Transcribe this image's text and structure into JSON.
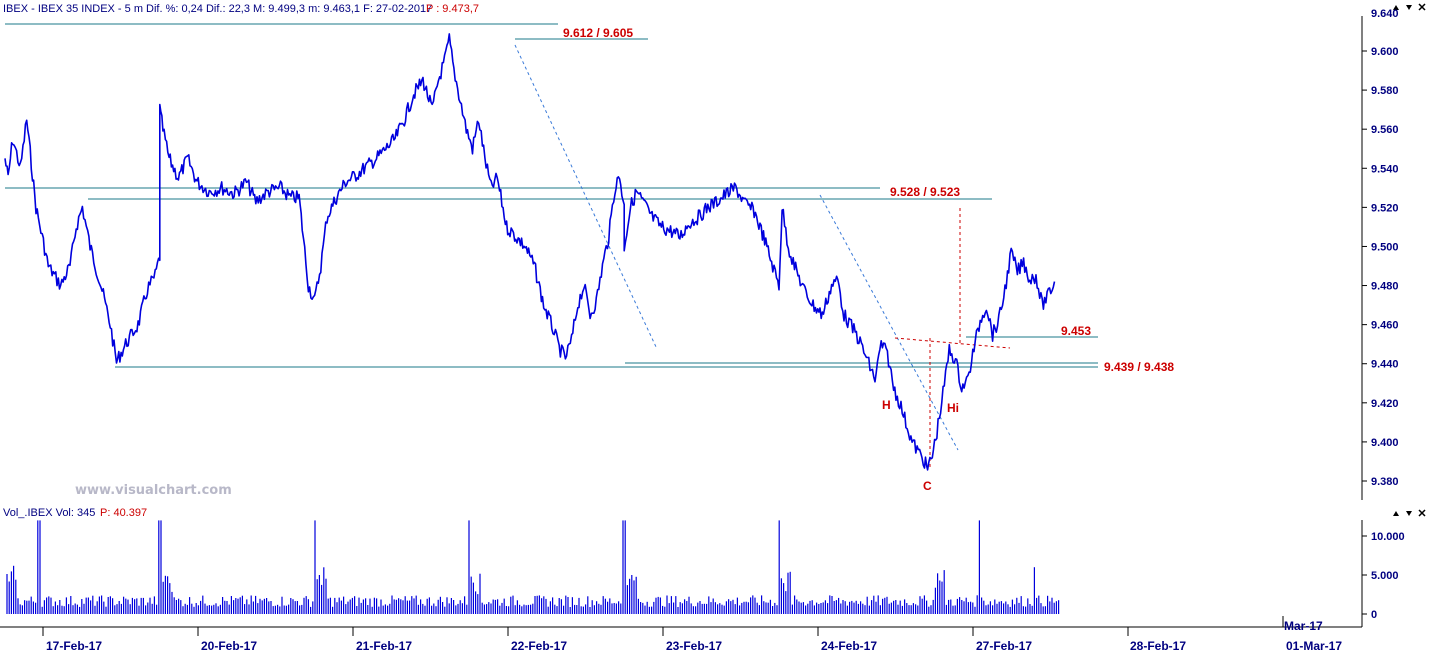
{
  "header": {
    "price_info": "IBEX - IBEX 35 INDEX -  5 m  Dif. %: 0,24  Dif.: 22,3  M: 9.499,3  m: 9.463,1  F: 27-02-2017",
    "price_last": "P : 9.473,7",
    "volume_info": "Vol_.IBEX  Vol: 345",
    "volume_last": "P: 40.397"
  },
  "watermark": "www.visualchart.com",
  "colors": {
    "price_line": "#0000dd",
    "support_lines": "#1b7a8a",
    "annotation": "#cc0000",
    "axis_text": "#000080",
    "trend_line": "#3a7ad8"
  },
  "chart_data": [
    {
      "type": "line",
      "name": "IBEX price 5m",
      "ylim": [
        9.37,
        9.64
      ],
      "yticks": [
        "9.380",
        "9.400",
        "9.420",
        "9.440",
        "9.460",
        "9.480",
        "9.500",
        "9.520",
        "9.540",
        "9.560",
        "9.580",
        "9.600"
      ],
      "ytick_values": [
        9.38,
        9.4,
        9.42,
        9.44,
        9.46,
        9.48,
        9.5,
        9.52,
        9.54,
        9.56,
        9.58,
        9.6
      ],
      "top_tick_partial": "9.640",
      "xlabels": [
        "17-Feb-17",
        "20-Feb-17",
        "21-Feb-17",
        "22-Feb-17",
        "23-Feb-17",
        "24-Feb-17",
        "27-Feb-17",
        "28-Feb-17",
        "Mar-17",
        "01-Mar-17"
      ],
      "anchors_day_index_price": [
        [
          0.0,
          9.545
        ],
        [
          0.02,
          9.535
        ],
        [
          0.05,
          9.555
        ],
        [
          0.1,
          9.54
        ],
        [
          0.14,
          9.565
        ],
        [
          0.2,
          9.52
        ],
        [
          0.28,
          9.49
        ],
        [
          0.36,
          9.48
        ],
        [
          0.42,
          9.49
        ],
        [
          0.46,
          9.51
        ],
        [
          0.5,
          9.52
        ],
        [
          0.55,
          9.5
        ],
        [
          0.62,
          9.48
        ],
        [
          0.68,
          9.46
        ],
        [
          0.72,
          9.441
        ],
        [
          0.78,
          9.45
        ],
        [
          0.86,
          9.46
        ],
        [
          0.92,
          9.478
        ],
        [
          0.97,
          9.485
        ],
        [
          1.0,
          9.495
        ],
        [
          1.0,
          9.57
        ],
        [
          1.02,
          9.56
        ],
        [
          1.06,
          9.545
        ],
        [
          1.12,
          9.535
        ],
        [
          1.18,
          9.545
        ],
        [
          1.24,
          9.533
        ],
        [
          1.32,
          9.528
        ],
        [
          1.4,
          9.53
        ],
        [
          1.48,
          9.527
        ],
        [
          1.56,
          9.533
        ],
        [
          1.62,
          9.523
        ],
        [
          1.7,
          9.528
        ],
        [
          1.78,
          9.53
        ],
        [
          1.84,
          9.525
        ],
        [
          1.9,
          9.525
        ],
        [
          1.92,
          9.51
        ],
        [
          1.96,
          9.48
        ],
        [
          2.0,
          9.472
        ],
        [
          2.04,
          9.49
        ],
        [
          2.08,
          9.515
        ],
        [
          2.14,
          9.525
        ],
        [
          2.2,
          9.533
        ],
        [
          2.26,
          9.536
        ],
        [
          2.32,
          9.54
        ],
        [
          2.4,
          9.545
        ],
        [
          2.46,
          9.55
        ],
        [
          2.52,
          9.555
        ],
        [
          2.58,
          9.565
        ],
        [
          2.64,
          9.578
        ],
        [
          2.7,
          9.585
        ],
        [
          2.76,
          9.57
        ],
        [
          2.8,
          9.585
        ],
        [
          2.84,
          9.595
        ],
        [
          2.87,
          9.606
        ],
        [
          2.9,
          9.59
        ],
        [
          2.94,
          9.575
        ],
        [
          2.98,
          9.56
        ],
        [
          3.02,
          9.55
        ],
        [
          3.06,
          9.565
        ],
        [
          3.1,
          9.545
        ],
        [
          3.14,
          9.53
        ],
        [
          3.18,
          9.535
        ],
        [
          3.24,
          9.51
        ],
        [
          3.3,
          9.505
        ],
        [
          3.36,
          9.5
        ],
        [
          3.42,
          9.49
        ],
        [
          3.48,
          9.47
        ],
        [
          3.54,
          9.458
        ],
        [
          3.58,
          9.448
        ],
        [
          3.62,
          9.443
        ],
        [
          3.66,
          9.452
        ],
        [
          3.7,
          9.47
        ],
        [
          3.74,
          9.48
        ],
        [
          3.78,
          9.465
        ],
        [
          3.82,
          9.472
        ],
        [
          3.86,
          9.49
        ],
        [
          3.9,
          9.505
        ],
        [
          3.94,
          9.53
        ],
        [
          3.97,
          9.536
        ],
        [
          4.0,
          9.52
        ],
        [
          4.0,
          9.5
        ],
        [
          4.04,
          9.52
        ],
        [
          4.08,
          9.528
        ],
        [
          4.12,
          9.523
        ],
        [
          4.18,
          9.515
        ],
        [
          4.24,
          9.51
        ],
        [
          4.3,
          9.508
        ],
        [
          4.36,
          9.505
        ],
        [
          4.42,
          9.512
        ],
        [
          4.48,
          9.515
        ],
        [
          4.54,
          9.52
        ],
        [
          4.6,
          9.523
        ],
        [
          4.66,
          9.527
        ],
        [
          4.72,
          9.53
        ],
        [
          4.78,
          9.522
        ],
        [
          4.84,
          9.518
        ],
        [
          4.9,
          9.505
        ],
        [
          4.96,
          9.49
        ],
        [
          5.0,
          9.48
        ],
        [
          5.02,
          9.52
        ],
        [
          5.06,
          9.5
        ],
        [
          5.1,
          9.49
        ],
        [
          5.16,
          9.478
        ],
        [
          5.22,
          9.47
        ],
        [
          5.28,
          9.465
        ],
        [
          5.34,
          9.48
        ],
        [
          5.38,
          9.483
        ],
        [
          5.42,
          9.465
        ],
        [
          5.46,
          9.46
        ],
        [
          5.5,
          9.455
        ],
        [
          5.54,
          9.448
        ],
        [
          5.58,
          9.44
        ],
        [
          5.62,
          9.432
        ],
        [
          5.66,
          9.45
        ],
        [
          5.7,
          9.445
        ],
        [
          5.74,
          9.428
        ],
        [
          5.78,
          9.42
        ],
        [
          5.82,
          9.41
        ],
        [
          5.86,
          9.4
        ],
        [
          5.9,
          9.395
        ],
        [
          5.94,
          9.39
        ],
        [
          5.96,
          9.386
        ],
        [
          5.99,
          9.393
        ],
        [
          6.02,
          9.405
        ],
        [
          6.06,
          9.425
        ],
        [
          6.1,
          9.447
        ],
        [
          6.14,
          9.442
        ],
        [
          6.18,
          9.428
        ],
        [
          6.22,
          9.432
        ],
        [
          6.26,
          9.448
        ],
        [
          6.3,
          9.462
        ],
        [
          6.34,
          9.47
        ],
        [
          6.38,
          9.455
        ],
        [
          6.42,
          9.462
        ],
        [
          6.46,
          9.478
        ],
        [
          6.5,
          9.497
        ],
        [
          6.54,
          9.487
        ],
        [
          6.58,
          9.492
        ],
        [
          6.62,
          9.483
        ],
        [
          6.66,
          9.485
        ],
        [
          6.7,
          9.47
        ],
        [
          6.74,
          9.475
        ],
        [
          6.78,
          9.482
        ]
      ]
    },
    {
      "type": "bar",
      "name": "Volume",
      "ylim": [
        0,
        12000
      ],
      "yticks": [
        "0",
        "5.000",
        "10.000"
      ],
      "ytick_values": [
        0,
        5000,
        10000
      ],
      "spikes_day_index_volume": [
        [
          0.22,
          12000
        ],
        [
          1.0,
          12000
        ],
        [
          2.0,
          12000
        ],
        [
          3.0,
          12000
        ],
        [
          4.0,
          12000
        ],
        [
          5.0,
          12000
        ],
        [
          6.3,
          12000
        ],
        [
          6.65,
          6000
        ]
      ]
    }
  ],
  "annotations": {
    "level_top": "9.612 / 9.605",
    "level_resistance": "9.528 / 9.523",
    "level_neckline": "9.453",
    "level_support": "9.439 / 9.438",
    "label_h": "H",
    "label_hi": "Hi",
    "label_c": "C"
  }
}
